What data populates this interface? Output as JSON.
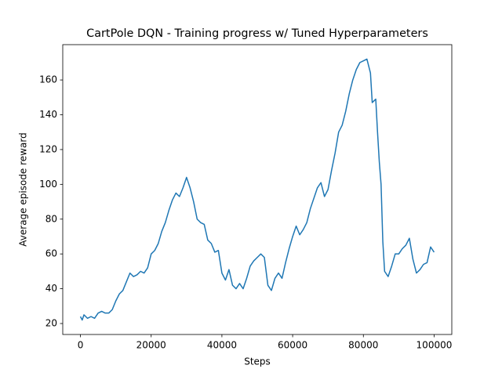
{
  "chart_data": {
    "type": "line",
    "title": "CartPole DQN - Training progress w/ Tuned Hyperparameters",
    "x_label": "Steps",
    "y_label": "Average episode reward",
    "x": [
      0,
      500,
      1000,
      2000,
      3000,
      4000,
      5000,
      6000,
      7000,
      8000,
      9000,
      10000,
      11000,
      12000,
      13000,
      14000,
      15000,
      16000,
      17000,
      18000,
      19000,
      20000,
      21000,
      22000,
      23000,
      24000,
      25000,
      26000,
      27000,
      28000,
      29000,
      30000,
      31000,
      32000,
      33000,
      34000,
      35000,
      36000,
      37000,
      38000,
      39000,
      40000,
      41000,
      42000,
      43000,
      44000,
      45000,
      46000,
      47000,
      48000,
      49000,
      50000,
      51000,
      52000,
      53000,
      54000,
      55000,
      56000,
      57000,
      58000,
      59000,
      60000,
      61000,
      62000,
      63000,
      64000,
      65000,
      66000,
      67000,
      68000,
      69000,
      70000,
      71000,
      72000,
      73000,
      74000,
      75000,
      76000,
      77000,
      78000,
      79000,
      80000,
      81000,
      82000,
      82500,
      83500,
      84000,
      84500,
      85000,
      85500,
      86000,
      87000,
      88000,
      89000,
      90000,
      91000,
      92000,
      93000,
      94000,
      95000,
      96000,
      97000,
      98000,
      99000,
      100000
    ],
    "series": [
      {
        "name": "Average episode reward",
        "color": "#1f77b4",
        "values": [
          24,
          22,
          25,
          23,
          24,
          23,
          26,
          27,
          26,
          26,
          28,
          33,
          37,
          39,
          44,
          49,
          47,
          48,
          50,
          49,
          52,
          60,
          62,
          66,
          73,
          78,
          85,
          91,
          95,
          93,
          98,
          104,
          98,
          90,
          80,
          78,
          77,
          68,
          66,
          61,
          62,
          49,
          45,
          51,
          42,
          40,
          43,
          40,
          46,
          53,
          56,
          58,
          60,
          58,
          42,
          39,
          46,
          49,
          46,
          55,
          63,
          70,
          76,
          71,
          74,
          78,
          86,
          92,
          98,
          101,
          93,
          97,
          108,
          118,
          130,
          134,
          142,
          152,
          160,
          166,
          170,
          171,
          172,
          164,
          147,
          149,
          130,
          113,
          100,
          67,
          50,
          47,
          53,
          60,
          60,
          63,
          65,
          69,
          57,
          49,
          51,
          54,
          55,
          64,
          61
        ]
      }
    ],
    "xlim": [
      -5000,
      105000
    ],
    "ylim": [
      13.7,
      180.3
    ],
    "xticks": [
      0,
      20000,
      40000,
      60000,
      80000,
      100000
    ],
    "yticks": [
      20,
      40,
      60,
      80,
      100,
      120,
      140,
      160
    ]
  }
}
